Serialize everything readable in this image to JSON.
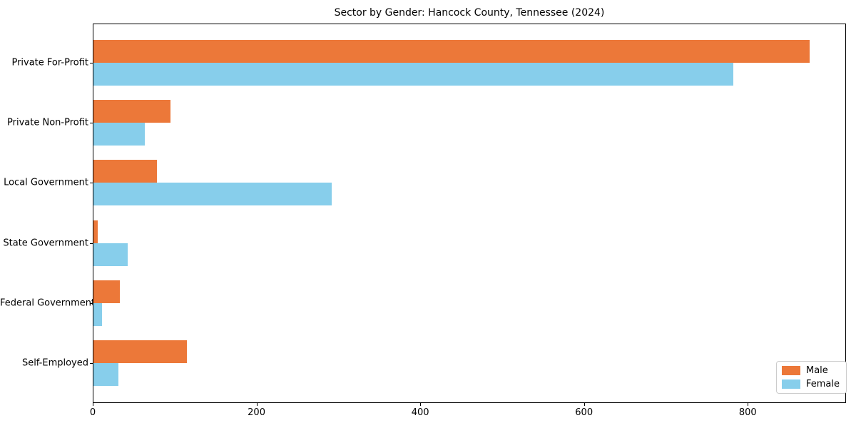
{
  "chart_data": {
    "type": "bar",
    "orientation": "horizontal",
    "title": "Sector by Gender: Hancock County, Tennessee (2024)",
    "categories": [
      "Private For-Profit",
      "Private Non-Profit",
      "Local Government",
      "State Government",
      "Federal Government",
      "Self-Employed"
    ],
    "series": [
      {
        "name": "Male",
        "color": "#EC7839",
        "values": [
          876,
          95,
          78,
          6,
          33,
          115
        ]
      },
      {
        "name": "Female",
        "color": "#87CEEB",
        "values": [
          782,
          64,
          292,
          43,
          11,
          31
        ]
      }
    ],
    "xlabel": "",
    "ylabel": "",
    "xlim": [
      0,
      920
    ],
    "xticks": [
      0,
      200,
      400,
      600,
      800
    ],
    "legend_position": "lower right",
    "grid": false,
    "axis_color": "#000000",
    "background_color": "#ffffff"
  }
}
